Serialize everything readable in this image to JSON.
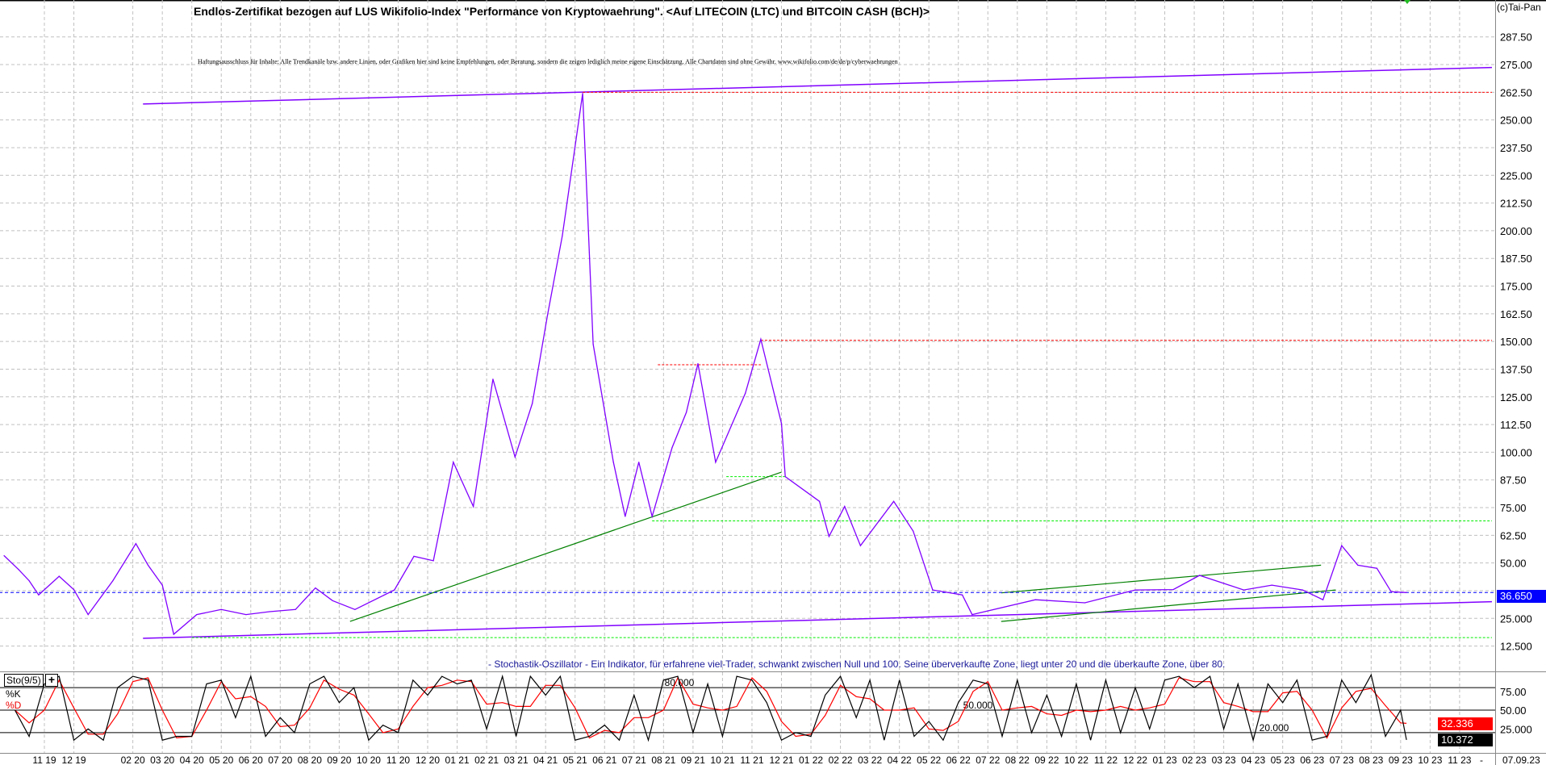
{
  "header": {
    "title": "Endlos-Zertifikat bezogen auf LUS Wikifolio-Index \"Performance von Kryptowaehrung\". <Auf LITECOIN (LTC) und BITCOIN CASH (BCH)>",
    "disclaimer": "Haftungsausschluss für Inhalte: Alle Trendkanäle bzw. andere Linien, oder Grafiken hier sind keine Empfehlungen, oder Beratung, sondern die zeigen lediglich meine eigene Einschätzung. Alle Chartdaten sind ohne Gewähr. www.wikifolio.com/de/de/p/cyberwaehrungen",
    "copyright": "(c)Tai-Pan"
  },
  "indicator": {
    "description": "- Stochastik-Oszillator - Ein Indikator, für erfahrene viel-Trader, schwankt zwischen Null und 100. Seine überverkaufte Zone, liegt unter 20 und die überkaufte Zone, über 80.",
    "name": "Sto(9/5)",
    "k_label": "%K",
    "d_label": "%D",
    "plus_icon": "+"
  },
  "colors": {
    "price": "#8000ff",
    "channel": "#8000ff",
    "resistance": "#ff0000",
    "support": "#00ee00",
    "trend": "#008000",
    "last_price": "#0000ff",
    "k_line": "#000000",
    "d_line": "#ff0000",
    "grid": "#c0c0c0"
  },
  "chart_data": [
    {
      "type": "line",
      "title": "Endlos-Zertifikat bezogen auf LUS Wikifolio-Index \"Performance von Kryptowaehrung\". <Auf LITECOIN (LTC) und BITCOIN CASH (BCH)>",
      "grid": true,
      "y_axis_side": "right",
      "ylim": [
        6.25,
        300
      ],
      "xlim": [
        "2019-09-15",
        "2023-12-08"
      ],
      "y_tick_labels": [
        {
          "v": 287.5,
          "label": "287.50"
        },
        {
          "v": 275,
          "label": "275.00"
        },
        {
          "v": 262.5,
          "label": "262.50"
        },
        {
          "v": 250,
          "label": "250.00"
        },
        {
          "v": 237.5,
          "label": "237.50"
        },
        {
          "v": 225,
          "label": "225.00"
        },
        {
          "v": 212.5,
          "label": "212.50"
        },
        {
          "v": 200,
          "label": "200.00"
        },
        {
          "v": 187.5,
          "label": "187.50"
        },
        {
          "v": 175,
          "label": "175.00"
        },
        {
          "v": 162.5,
          "label": "162.50"
        },
        {
          "v": 150,
          "label": "150.00"
        },
        {
          "v": 137.5,
          "label": "137.50"
        },
        {
          "v": 125,
          "label": "125.00"
        },
        {
          "v": 112.5,
          "label": "112.50"
        },
        {
          "v": 100,
          "label": "100.00"
        },
        {
          "v": 87.5,
          "label": "87.50"
        },
        {
          "v": 75,
          "label": "75.00"
        },
        {
          "v": 62.5,
          "label": "62.50"
        },
        {
          "v": 50,
          "label": "50.00"
        },
        {
          "v": 25,
          "label": "25.000"
        },
        {
          "v": 12.5,
          "label": "12.500"
        }
      ],
      "last_value": 36.65,
      "last_value_label": "36.650",
      "x_tick_labels": [
        {
          "d": "2019-11-01",
          "label": "11 19"
        },
        {
          "d": "2019-12-01",
          "label": "12 19"
        },
        {
          "d": "2020-02-01",
          "label": "02 20"
        },
        {
          "d": "2020-03-01",
          "label": "03 20"
        },
        {
          "d": "2020-04-01",
          "label": "04 20"
        },
        {
          "d": "2020-05-01",
          "label": "05 20"
        },
        {
          "d": "2020-06-01",
          "label": "06 20"
        },
        {
          "d": "2020-07-01",
          "label": "07 20"
        },
        {
          "d": "2020-08-01",
          "label": "08 20"
        },
        {
          "d": "2020-09-01",
          "label": "09 20"
        },
        {
          "d": "2020-10-01",
          "label": "10 20"
        },
        {
          "d": "2020-11-01",
          "label": "11 20"
        },
        {
          "d": "2020-12-01",
          "label": "12 20"
        },
        {
          "d": "2021-01-01",
          "label": "01 21"
        },
        {
          "d": "2021-02-01",
          "label": "02 21"
        },
        {
          "d": "2021-03-01",
          "label": "03 21"
        },
        {
          "d": "2021-04-01",
          "label": "04 21"
        },
        {
          "d": "2021-05-01",
          "label": "05 21"
        },
        {
          "d": "2021-06-01",
          "label": "06 21"
        },
        {
          "d": "2021-07-01",
          "label": "07 21"
        },
        {
          "d": "2021-08-01",
          "label": "08 21"
        },
        {
          "d": "2021-09-01",
          "label": "09 21"
        },
        {
          "d": "2021-10-01",
          "label": "10 21"
        },
        {
          "d": "2021-11-01",
          "label": "11 21"
        },
        {
          "d": "2021-12-01",
          "label": "12 21"
        },
        {
          "d": "2022-01-01",
          "label": "01 22"
        },
        {
          "d": "2022-02-01",
          "label": "02 22"
        },
        {
          "d": "2022-03-01",
          "label": "03 22"
        },
        {
          "d": "2022-04-01",
          "label": "04 22"
        },
        {
          "d": "2022-05-01",
          "label": "05 22"
        },
        {
          "d": "2022-06-01",
          "label": "06 22"
        },
        {
          "d": "2022-07-01",
          "label": "07 22"
        },
        {
          "d": "2022-08-01",
          "label": "08 22"
        },
        {
          "d": "2022-09-01",
          "label": "09 22"
        },
        {
          "d": "2022-10-01",
          "label": "10 22"
        },
        {
          "d": "2022-11-01",
          "label": "11 22"
        },
        {
          "d": "2022-12-01",
          "label": "12 22"
        },
        {
          "d": "2023-01-01",
          "label": "01 23"
        },
        {
          "d": "2023-02-01",
          "label": "02 23"
        },
        {
          "d": "2023-03-01",
          "label": "03 23"
        },
        {
          "d": "2023-04-01",
          "label": "04 23"
        },
        {
          "d": "2023-05-01",
          "label": "05 23"
        },
        {
          "d": "2023-06-01",
          "label": "06 23"
        },
        {
          "d": "2023-07-01",
          "label": "07 23"
        },
        {
          "d": "2023-08-01",
          "label": "08 23"
        },
        {
          "d": "2023-09-01",
          "label": "09 23"
        },
        {
          "d": "2023-10-01",
          "label": "10 23"
        },
        {
          "d": "2023-11-01",
          "label": "11 23"
        }
      ],
      "x_axis_end_label": "07.09.23",
      "x_axis_separator": "-",
      "series": [
        {
          "points": [
            [
              "2019-09-20",
              53.3
            ],
            [
              "2019-10-05",
              47
            ],
            [
              "2019-10-16",
              42
            ],
            [
              "2019-10-26",
              35.6
            ],
            [
              "2019-11-16",
              44
            ],
            [
              "2019-12-01",
              38
            ],
            [
              "2019-12-16",
              26.7
            ],
            [
              "2020-01-11",
              42
            ],
            [
              "2020-02-04",
              58.7
            ],
            [
              "2020-02-16",
              49
            ],
            [
              "2020-03-01",
              40
            ],
            [
              "2020-03-13",
              17.8
            ],
            [
              "2020-04-06",
              26.7
            ],
            [
              "2020-05-01",
              29
            ],
            [
              "2020-05-27",
              26.7
            ],
            [
              "2020-06-20",
              28
            ],
            [
              "2020-07-17",
              29
            ],
            [
              "2020-08-07",
              38.7
            ],
            [
              "2020-08-25",
              33
            ],
            [
              "2020-09-17",
              29
            ],
            [
              "2020-10-28",
              37.8
            ],
            [
              "2020-11-17",
              53
            ],
            [
              "2020-12-07",
              51
            ],
            [
              "2020-12-28",
              95.5
            ],
            [
              "2021-01-18",
              75.5
            ],
            [
              "2021-02-07",
              133
            ],
            [
              "2021-02-28",
              97.8
            ],
            [
              "2021-03-18",
              122
            ],
            [
              "2021-04-03",
              162
            ],
            [
              "2021-04-18",
              197.7
            ],
            [
              "2021-05-09",
              262
            ],
            [
              "2021-05-20",
              148.8
            ],
            [
              "2021-06-10",
              95.5
            ],
            [
              "2021-06-22",
              71
            ],
            [
              "2021-07-06",
              95.5
            ],
            [
              "2021-07-20",
              71
            ],
            [
              "2021-08-10",
              102
            ],
            [
              "2021-08-25",
              118
            ],
            [
              "2021-09-06",
              140
            ],
            [
              "2021-09-24",
              95.5
            ],
            [
              "2021-10-25",
              126.6
            ],
            [
              "2021-11-10",
              151
            ],
            [
              "2021-12-01",
              113
            ],
            [
              "2021-12-05",
              89
            ],
            [
              "2022-01-10",
              77.8
            ],
            [
              "2022-01-20",
              62
            ],
            [
              "2022-02-05",
              75.5
            ],
            [
              "2022-02-20",
              57.8
            ],
            [
              "2022-03-26",
              77.8
            ],
            [
              "2022-04-15",
              64.4
            ],
            [
              "2022-05-05",
              37.8
            ],
            [
              "2022-06-05",
              35.6
            ],
            [
              "2022-06-15",
              26.7
            ],
            [
              "2022-08-20",
              33.4
            ],
            [
              "2022-10-10",
              32
            ],
            [
              "2022-12-01",
              37.8
            ],
            [
              "2023-01-10",
              38
            ],
            [
              "2023-02-06",
              44.4
            ],
            [
              "2023-03-22",
              37.8
            ],
            [
              "2023-04-20",
              40
            ],
            [
              "2023-05-22",
              37.8
            ],
            [
              "2023-06-12",
              33.4
            ],
            [
              "2023-07-01",
              57.8
            ],
            [
              "2023-07-18",
              49
            ],
            [
              "2023-08-07",
              47.6
            ],
            [
              "2023-08-22",
              37
            ],
            [
              "2023-09-07",
              36.65
            ]
          ]
        }
      ],
      "annotations": [
        {
          "kind": "channel-upper",
          "from": [
            "2020-02-11",
            257.2
          ],
          "to": [
            "2023-12-04",
            273.7
          ]
        },
        {
          "kind": "channel-lower",
          "from": [
            "2020-02-11",
            16.0
          ],
          "to": [
            "2023-12-04",
            32.5
          ]
        },
        {
          "kind": "resistance",
          "from": [
            "2021-05-09",
            262.5
          ],
          "to": [
            "2023-12-04",
            262.5
          ]
        },
        {
          "kind": "resistance",
          "from": [
            "2021-11-10",
            150.5
          ],
          "to": [
            "2023-12-04",
            150.5
          ]
        },
        {
          "kind": "resistance",
          "from": [
            "2021-07-26",
            139.5
          ],
          "to": [
            "2021-11-10",
            139.5
          ]
        },
        {
          "kind": "support",
          "from": [
            "2021-07-20",
            69
          ],
          "to": [
            "2023-12-04",
            69
          ]
        },
        {
          "kind": "support",
          "from": [
            "2021-10-05",
            89
          ],
          "to": [
            "2021-12-05",
            89
          ]
        },
        {
          "kind": "support",
          "from": [
            "2020-04-01",
            16.3
          ],
          "to": [
            "2023-12-04",
            16.3
          ]
        },
        {
          "kind": "trend",
          "from": [
            "2020-09-12",
            23.6
          ],
          "to": [
            "2021-12-01",
            91
          ]
        },
        {
          "kind": "trend",
          "from": [
            "2022-07-15",
            36.5
          ],
          "to": [
            "2023-06-10",
            49
          ]
        },
        {
          "kind": "trend",
          "from": [
            "2022-07-15",
            23.6
          ],
          "to": [
            "2023-06-25",
            37.8
          ]
        },
        {
          "kind": "last-price",
          "from": [
            "2019-09-15",
            36.65
          ],
          "to": [
            "2023-12-08",
            36.65
          ]
        }
      ]
    },
    {
      "type": "line",
      "title": "Sto(9/5)",
      "ylim": [
        0,
        100
      ],
      "y_tick_labels": [
        {
          "v": 75,
          "label": "75.00"
        },
        {
          "v": 50,
          "label": "50.00"
        },
        {
          "v": 25,
          "label": "25.000"
        }
      ],
      "levels": [
        {
          "v": 80,
          "label": "80.000"
        },
        {
          "v": 50,
          "label": "50.000"
        },
        {
          "v": 20,
          "label": "20.000"
        }
      ],
      "last_d_label": "32.336",
      "last_k_label": "10.372",
      "series": [
        {
          "name": "%K",
          "values": [
            50,
            15,
            85,
            95,
            10,
            25,
            10,
            80,
            95,
            90,
            10,
            15,
            15,
            85,
            90,
            40,
            95,
            15,
            40,
            20,
            85,
            95,
            60,
            80,
            10,
            30,
            20,
            90,
            70,
            95,
            85,
            90,
            25,
            95,
            15,
            95,
            70,
            95,
            10,
            15,
            30,
            10,
            70,
            10,
            90,
            95,
            20,
            85,
            15,
            95,
            90,
            60,
            10,
            20,
            15,
            70,
            95,
            40,
            90,
            10,
            90,
            15,
            35,
            10,
            60,
            90,
            85,
            15,
            90,
            20,
            70,
            15,
            85,
            10,
            90,
            20,
            80,
            25,
            90,
            95,
            80,
            95,
            25,
            85,
            10,
            85,
            60,
            90,
            10,
            15,
            90,
            60,
            97,
            15,
            50,
            10.372
          ]
        },
        {
          "name": "%D",
          "values": [
            50,
            33,
            50,
            90,
            53,
            18,
            18,
            45,
            88,
            93,
            50,
            13,
            15,
            50,
            88,
            65,
            68,
            55,
            28,
            30,
            53,
            90,
            78,
            70,
            45,
            20,
            25,
            55,
            80,
            83,
            90,
            88,
            58,
            60,
            55,
            55,
            83,
            83,
            53,
            13,
            23,
            20,
            40,
            40,
            50,
            93,
            58,
            53,
            50,
            55,
            93,
            75,
            35,
            15,
            18,
            43,
            83,
            68,
            65,
            50,
            50,
            53,
            25,
            23,
            35,
            75,
            88,
            50,
            53,
            55,
            45,
            43,
            50,
            48,
            50,
            55,
            50,
            53,
            58,
            93,
            88,
            88,
            60,
            55,
            48,
            48,
            73,
            75,
            50,
            13,
            53,
            75,
            79,
            56,
            33,
            32.336
          ]
        }
      ],
      "x_start": "2019-10-01",
      "x_step": "semi-monthly (1st and 16th)",
      "x_end": "2023-09-07"
    }
  ]
}
